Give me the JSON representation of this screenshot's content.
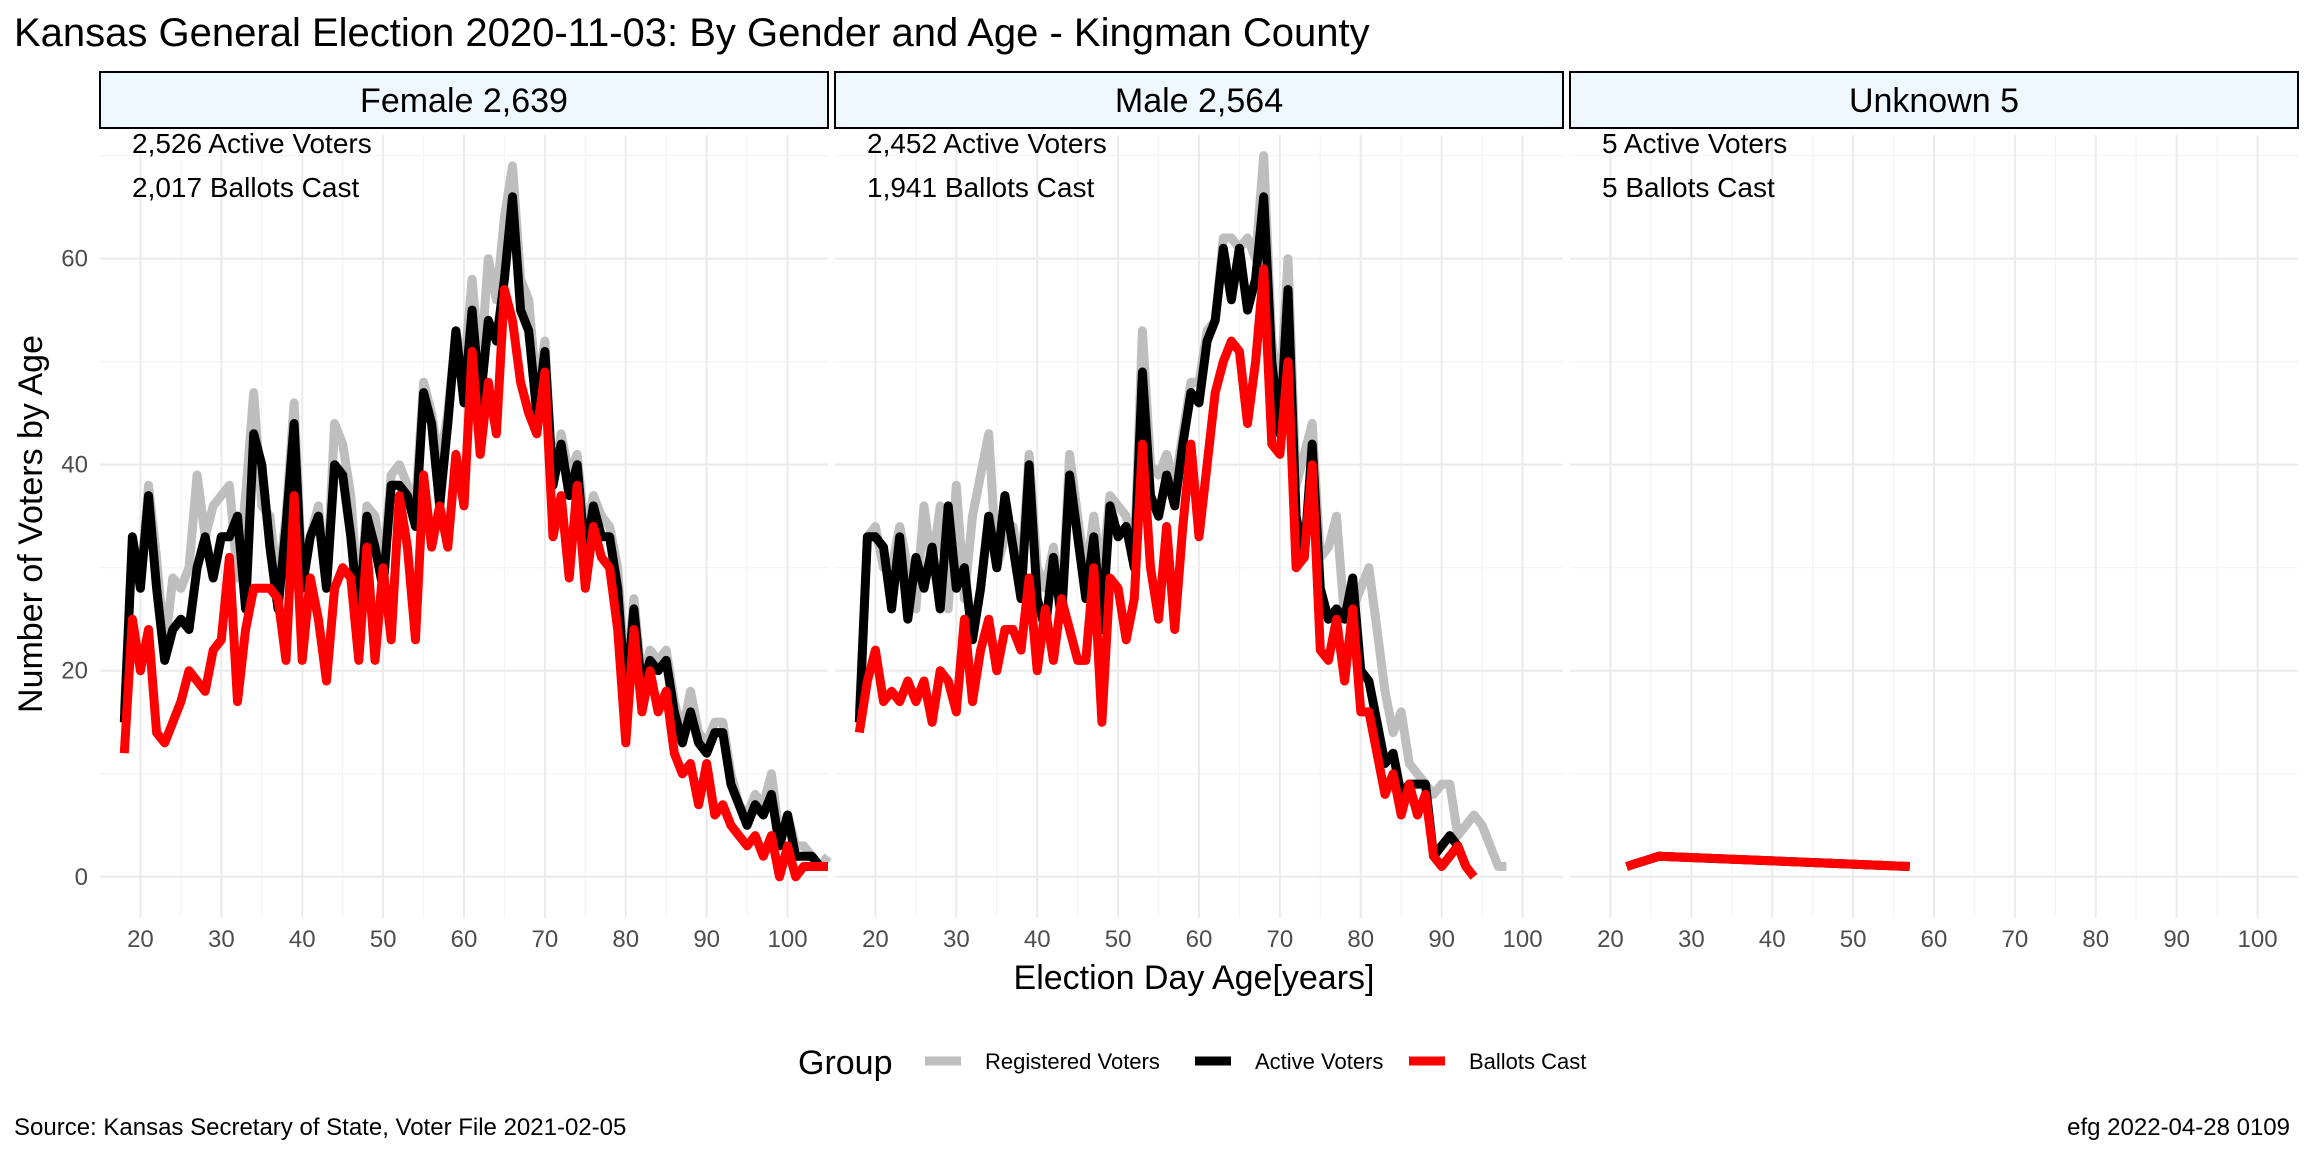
{
  "chart_data": {
    "type": "line",
    "title": "Kansas General Election 2020-11-03:  By Gender and Age - Kingman County",
    "xlabel": "Election Day Age[years]",
    "ylabel": "Number of Voters by Age",
    "xlim": [
      15,
      105
    ],
    "ylim": [
      -4,
      72
    ],
    "x_ticks": [
      20,
      30,
      40,
      50,
      60,
      70,
      80,
      90,
      100
    ],
    "y_ticks": [
      0,
      20,
      40,
      60
    ],
    "grid": true,
    "legend": {
      "position": "bottom",
      "title": "Group",
      "entries": [
        {
          "label": "Registered Voters",
          "color": "#bebebe"
        },
        {
          "label": "Active Voters",
          "color": "#000000"
        },
        {
          "label": "Ballots Cast",
          "color": "#ff0000"
        }
      ]
    },
    "source": "Source:  Kansas Secretary of State, Voter File  2021-02-05",
    "credit": "efg 2022-04-28 0109",
    "panels": [
      {
        "strip": "Female 2,639",
        "annotations": [
          "2,526 Active Voters",
          "2,017 Ballots Cast"
        ],
        "x_start": 18,
        "series": [
          {
            "name": "Registered Voters",
            "color": "#bebebe",
            "values": [
              16,
              33,
              28,
              38,
              31,
              22,
              29,
              28,
              30,
              39,
              33,
              36,
              37,
              38,
              29,
              37,
              47,
              36,
              35,
              28,
              35,
              46,
              29,
              33,
              36,
              28,
              44,
              42,
              37,
              26,
              36,
              35,
              30,
              39,
              40,
              38,
              36,
              48,
              45,
              40,
              45,
              53,
              49,
              58,
              49,
              60,
              56,
              64,
              69,
              58,
              56,
              47,
              52,
              38,
              43,
              39,
              41,
              33,
              37,
              35,
              34,
              30,
              18,
              27,
              19,
              22,
              21,
              22,
              17,
              14,
              18,
              14,
              13,
              15,
              15,
              10,
              7,
              6,
              8,
              7,
              10,
              4,
              6,
              3,
              3,
              2,
              1,
              2
            ]
          },
          {
            "name": "Active Voters",
            "color": "#000000",
            "values": [
              15,
              33,
              28,
              37,
              28,
              21,
              24,
              25,
              24,
              30,
              33,
              29,
              33,
              33,
              35,
              26,
              43,
              40,
              32,
              26,
              34,
              44,
              28,
              33,
              35,
              28,
              40,
              39,
              33,
              25,
              35,
              32,
              28,
              38,
              38,
              37,
              34,
              47,
              44,
              36,
              44,
              53,
              46,
              55,
              46,
              54,
              52,
              58,
              66,
              55,
              53,
              45,
              51,
              38,
              42,
              37,
              40,
              31,
              36,
              33,
              33,
              28,
              17,
              26,
              18,
              21,
              20,
              21,
              16,
              13,
              16,
              13,
              12,
              14,
              14,
              9,
              7,
              5,
              7,
              6,
              8,
              3,
              6,
              2,
              2,
              2,
              1,
              1
            ]
          },
          {
            "name": "Ballots Cast",
            "color": "#ff0000",
            "values": [
              12,
              25,
              20,
              24,
              14,
              13,
              15,
              17,
              20,
              19,
              18,
              22,
              23,
              31,
              17,
              24,
              28,
              28,
              28,
              27,
              21,
              37,
              21,
              29,
              25,
              19,
              28,
              30,
              29,
              21,
              32,
              21,
              30,
              23,
              37,
              32,
              23,
              39,
              32,
              36,
              32,
              41,
              36,
              51,
              41,
              48,
              43,
              57,
              54,
              48,
              45,
              43,
              49,
              33,
              37,
              29,
              38,
              28,
              34,
              31,
              30,
              24,
              13,
              24,
              16,
              20,
              16,
              18,
              12,
              10,
              11,
              7,
              11,
              6,
              7,
              5,
              4,
              3,
              4,
              2,
              4,
              0,
              3,
              0,
              1,
              1,
              1,
              1
            ]
          }
        ]
      },
      {
        "strip": "Male 2,564",
        "annotations": [
          "2,452 Active Voters",
          "1,941 Ballots Cast"
        ],
        "x_start": 18,
        "series": [
          {
            "name": "Registered Voters",
            "color": "#bebebe",
            "values": [
              16,
              33,
              34,
              30,
              30,
              34,
              30,
              26,
              36,
              30,
              36,
              26,
              38,
              27,
              35,
              39,
              43,
              30,
              33,
              34,
              29,
              41,
              30,
              28,
              32,
              26,
              41,
              35,
              29,
              35,
              29,
              37,
              36,
              35,
              31,
              53,
              40,
              39,
              41,
              38,
              43,
              48,
              48,
              53,
              54,
              62,
              62,
              61,
              62,
              60,
              70,
              52,
              46,
              60,
              38,
              41,
              44,
              31,
              32,
              35,
              25,
              26,
              28,
              30,
              24,
              18,
              14,
              16,
              11,
              10,
              9,
              8,
              9,
              9,
              4,
              5,
              6,
              5,
              3,
              1,
              1
            ]
          },
          {
            "name": "Active Voters",
            "color": "#000000",
            "values": [
              15,
              33,
              33,
              32,
              26,
              33,
              25,
              31,
              28,
              32,
              26,
              36,
              28,
              30,
              23,
              28,
              35,
              30,
              37,
              32,
              27,
              40,
              27,
              24,
              31,
              25,
              39,
              33,
              27,
              33,
              24,
              36,
              33,
              34,
              30,
              49,
              37,
              35,
              39,
              36,
              42,
              47,
              46,
              52,
              54,
              61,
              56,
              61,
              55,
              58,
              66,
              50,
              43,
              57,
              35,
              31,
              42,
              28,
              25,
              26,
              25,
              29,
              20,
              19,
              15,
              11,
              12,
              8,
              9,
              9,
              9,
              2,
              3,
              4,
              3,
              1
            ]
          },
          {
            "name": "Ballots Cast",
            "color": "#ff0000",
            "values": [
              14,
              19,
              22,
              17,
              18,
              17,
              19,
              17,
              19,
              15,
              20,
              19,
              16,
              25,
              17,
              22,
              25,
              20,
              24,
              24,
              22,
              29,
              20,
              26,
              21,
              27,
              24,
              21,
              21,
              30,
              15,
              29,
              28,
              23,
              27,
              42,
              30,
              25,
              34,
              24,
              34,
              42,
              33,
              40,
              47,
              50,
              52,
              51,
              44,
              50,
              59,
              42,
              41,
              50,
              30,
              31,
              40,
              22,
              21,
              25,
              19,
              26,
              16,
              16,
              12,
              8,
              10,
              6,
              9,
              6,
              8,
              2,
              1,
              2,
              3,
              1,
              0
            ]
          }
        ]
      },
      {
        "strip": "Unknown 5",
        "annotations": [
          "5 Active Voters",
          "5 Ballots Cast"
        ],
        "x_start": 22,
        "series": [
          {
            "name": "Registered Voters",
            "color": "#bebebe",
            "points": [
              [
                22,
                1
              ],
              [
                26,
                2
              ],
              [
                57,
                1
              ]
            ]
          },
          {
            "name": "Active Voters",
            "color": "#000000",
            "points": [
              [
                22,
                1
              ],
              [
                26,
                2
              ],
              [
                57,
                1
              ]
            ]
          },
          {
            "name": "Ballots Cast",
            "color": "#ff0000",
            "points": [
              [
                22,
                1
              ],
              [
                26,
                2
              ],
              [
                57,
                1
              ]
            ]
          }
        ]
      }
    ]
  }
}
